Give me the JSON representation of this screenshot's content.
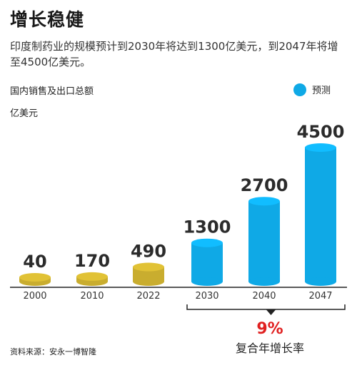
{
  "header": {
    "title": "增长稳健",
    "subtitle": "印度制药业的规模预计到2030年将达到1300亿美元，到2047年将增至4500亿美元。"
  },
  "labels": {
    "series_label": "国内销售及出口总额",
    "unit": "亿美元",
    "legend_forecast": "预测",
    "growth_pct": "9%",
    "growth_label": "复合年增长率",
    "source": "资料来源：安永一博智隆"
  },
  "colors": {
    "actual": "#c9ad2f",
    "forecast": "#0fa9e6",
    "growth": "#e02020"
  },
  "chart_data": {
    "type": "bar",
    "categories": [
      "2000",
      "2010",
      "2022",
      "2030",
      "2040",
      "2047"
    ],
    "values": [
      40,
      170,
      490,
      1300,
      2700,
      4500
    ],
    "forecast": [
      false,
      false,
      false,
      true,
      true,
      true
    ],
    "unit": "亿美元",
    "legend": [
      {
        "name": "预测",
        "color": "#0fa9e6"
      }
    ],
    "annotation": {
      "text": "9%",
      "label": "复合年增长率",
      "span": [
        "2030",
        "2047"
      ]
    }
  }
}
